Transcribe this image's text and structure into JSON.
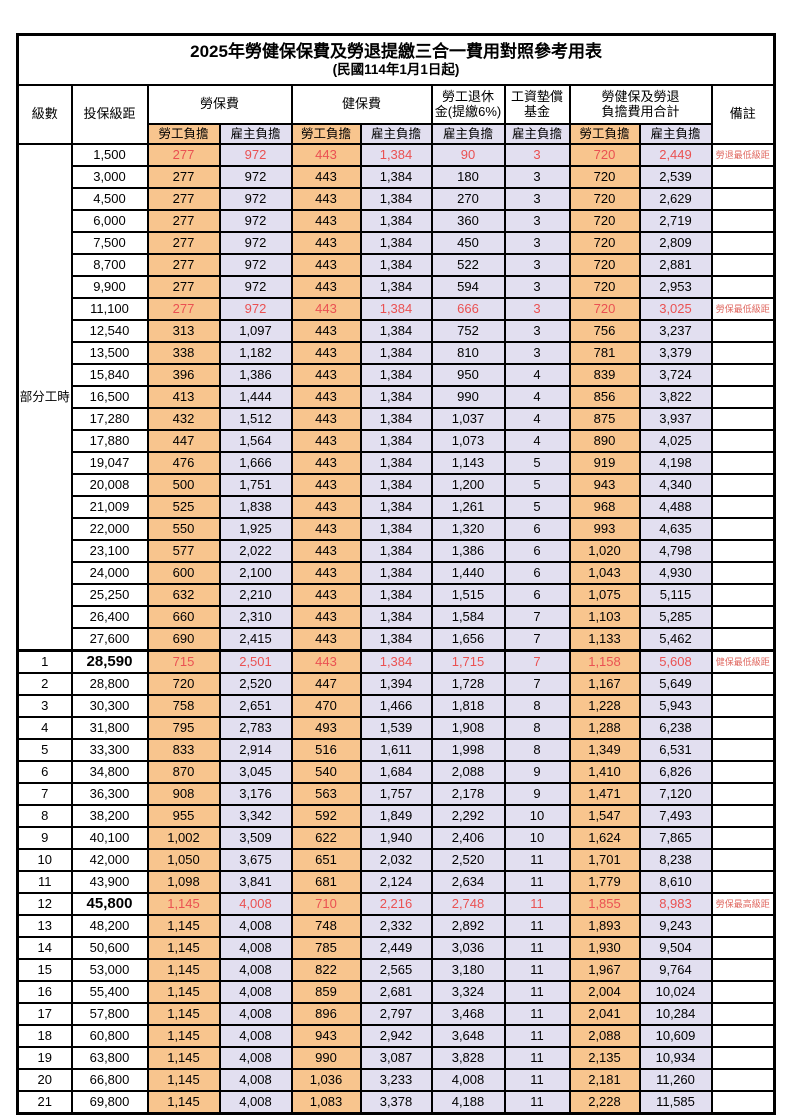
{
  "title": "2025年勞健保保費及勞退提繳三合一費用對照參考用表",
  "subtitle": "(民國114年1月1日起)",
  "header": {
    "level": "級數",
    "salary": "投保級距",
    "labor_group": "勞保費",
    "health_group": "健保費",
    "pension_line1": "勞工退休",
    "pension_line2": "金(提繳6%)",
    "wage_fund_line1": "工資墊償",
    "wage_fund_line2": "基金",
    "total_line1": "勞健保及勞退",
    "total_line2": "負擔費用合計",
    "remark": "備註",
    "employee": "勞工負擔",
    "employer": "雇主負擔"
  },
  "part_time_label": "部分工時",
  "part_time_rowspan": 23,
  "colors": {
    "employee_bg": "#f8c58e",
    "employer_bg": "#e2dff0",
    "highlight_text": "#ea5152",
    "remark_text": "#e06a62",
    "border": "#000000"
  },
  "rows": [
    {
      "level": "",
      "salary": "1,500",
      "cells": [
        "277",
        "972",
        "443",
        "1,384",
        "90",
        "3",
        "720",
        "2,449"
      ],
      "remark": "勞退最低級距",
      "highlight": true
    },
    {
      "level": "",
      "salary": "3,000",
      "cells": [
        "277",
        "972",
        "443",
        "1,384",
        "180",
        "3",
        "720",
        "2,539"
      ],
      "remark": ""
    },
    {
      "level": "",
      "salary": "4,500",
      "cells": [
        "277",
        "972",
        "443",
        "1,384",
        "270",
        "3",
        "720",
        "2,629"
      ],
      "remark": ""
    },
    {
      "level": "",
      "salary": "6,000",
      "cells": [
        "277",
        "972",
        "443",
        "1,384",
        "360",
        "3",
        "720",
        "2,719"
      ],
      "remark": ""
    },
    {
      "level": "",
      "salary": "7,500",
      "cells": [
        "277",
        "972",
        "443",
        "1,384",
        "450",
        "3",
        "720",
        "2,809"
      ],
      "remark": ""
    },
    {
      "level": "",
      "salary": "8,700",
      "cells": [
        "277",
        "972",
        "443",
        "1,384",
        "522",
        "3",
        "720",
        "2,881"
      ],
      "remark": ""
    },
    {
      "level": "",
      "salary": "9,900",
      "cells": [
        "277",
        "972",
        "443",
        "1,384",
        "594",
        "3",
        "720",
        "2,953"
      ],
      "remark": ""
    },
    {
      "level": "",
      "salary": "11,100",
      "cells": [
        "277",
        "972",
        "443",
        "1,384",
        "666",
        "3",
        "720",
        "3,025"
      ],
      "remark": "勞保最低級距",
      "highlight": true
    },
    {
      "level": "",
      "salary": "12,540",
      "cells": [
        "313",
        "1,097",
        "443",
        "1,384",
        "752",
        "3",
        "756",
        "3,237"
      ],
      "remark": ""
    },
    {
      "level": "",
      "salary": "13,500",
      "cells": [
        "338",
        "1,182",
        "443",
        "1,384",
        "810",
        "3",
        "781",
        "3,379"
      ],
      "remark": ""
    },
    {
      "level": "",
      "salary": "15,840",
      "cells": [
        "396",
        "1,386",
        "443",
        "1,384",
        "950",
        "4",
        "839",
        "3,724"
      ],
      "remark": ""
    },
    {
      "level": "",
      "salary": "16,500",
      "cells": [
        "413",
        "1,444",
        "443",
        "1,384",
        "990",
        "4",
        "856",
        "3,822"
      ],
      "remark": ""
    },
    {
      "level": "",
      "salary": "17,280",
      "cells": [
        "432",
        "1,512",
        "443",
        "1,384",
        "1,037",
        "4",
        "875",
        "3,937"
      ],
      "remark": ""
    },
    {
      "level": "",
      "salary": "17,880",
      "cells": [
        "447",
        "1,564",
        "443",
        "1,384",
        "1,073",
        "4",
        "890",
        "4,025"
      ],
      "remark": ""
    },
    {
      "level": "",
      "salary": "19,047",
      "cells": [
        "476",
        "1,666",
        "443",
        "1,384",
        "1,143",
        "5",
        "919",
        "4,198"
      ],
      "remark": ""
    },
    {
      "level": "",
      "salary": "20,008",
      "cells": [
        "500",
        "1,751",
        "443",
        "1,384",
        "1,200",
        "5",
        "943",
        "4,340"
      ],
      "remark": ""
    },
    {
      "level": "",
      "salary": "21,009",
      "cells": [
        "525",
        "1,838",
        "443",
        "1,384",
        "1,261",
        "5",
        "968",
        "4,488"
      ],
      "remark": ""
    },
    {
      "level": "",
      "salary": "22,000",
      "cells": [
        "550",
        "1,925",
        "443",
        "1,384",
        "1,320",
        "6",
        "993",
        "4,635"
      ],
      "remark": ""
    },
    {
      "level": "",
      "salary": "23,100",
      "cells": [
        "577",
        "2,022",
        "443",
        "1,384",
        "1,386",
        "6",
        "1,020",
        "4,798"
      ],
      "remark": ""
    },
    {
      "level": "",
      "salary": "24,000",
      "cells": [
        "600",
        "2,100",
        "443",
        "1,384",
        "1,440",
        "6",
        "1,043",
        "4,930"
      ],
      "remark": ""
    },
    {
      "level": "",
      "salary": "25,250",
      "cells": [
        "632",
        "2,210",
        "443",
        "1,384",
        "1,515",
        "6",
        "1,075",
        "5,115"
      ],
      "remark": ""
    },
    {
      "level": "",
      "salary": "26,400",
      "cells": [
        "660",
        "2,310",
        "443",
        "1,384",
        "1,584",
        "7",
        "1,103",
        "5,285"
      ],
      "remark": ""
    },
    {
      "level": "",
      "salary": "27,600",
      "cells": [
        "690",
        "2,415",
        "443",
        "1,384",
        "1,656",
        "7",
        "1,133",
        "5,462"
      ],
      "remark": ""
    },
    {
      "level": "1",
      "salary": "28,590",
      "cells": [
        "715",
        "2,501",
        "443",
        "1,384",
        "1,715",
        "7",
        "1,158",
        "5,608"
      ],
      "remark": "健保最低級距",
      "highlight": true,
      "bold": true,
      "section": true
    },
    {
      "level": "2",
      "salary": "28,800",
      "cells": [
        "720",
        "2,520",
        "447",
        "1,394",
        "1,728",
        "7",
        "1,167",
        "5,649"
      ],
      "remark": ""
    },
    {
      "level": "3",
      "salary": "30,300",
      "cells": [
        "758",
        "2,651",
        "470",
        "1,466",
        "1,818",
        "8",
        "1,228",
        "5,943"
      ],
      "remark": ""
    },
    {
      "level": "4",
      "salary": "31,800",
      "cells": [
        "795",
        "2,783",
        "493",
        "1,539",
        "1,908",
        "8",
        "1,288",
        "6,238"
      ],
      "remark": ""
    },
    {
      "level": "5",
      "salary": "33,300",
      "cells": [
        "833",
        "2,914",
        "516",
        "1,611",
        "1,998",
        "8",
        "1,349",
        "6,531"
      ],
      "remark": ""
    },
    {
      "level": "6",
      "salary": "34,800",
      "cells": [
        "870",
        "3,045",
        "540",
        "1,684",
        "2,088",
        "9",
        "1,410",
        "6,826"
      ],
      "remark": ""
    },
    {
      "level": "7",
      "salary": "36,300",
      "cells": [
        "908",
        "3,176",
        "563",
        "1,757",
        "2,178",
        "9",
        "1,471",
        "7,120"
      ],
      "remark": ""
    },
    {
      "level": "8",
      "salary": "38,200",
      "cells": [
        "955",
        "3,342",
        "592",
        "1,849",
        "2,292",
        "10",
        "1,547",
        "7,493"
      ],
      "remark": ""
    },
    {
      "level": "9",
      "salary": "40,100",
      "cells": [
        "1,002",
        "3,509",
        "622",
        "1,940",
        "2,406",
        "10",
        "1,624",
        "7,865"
      ],
      "remark": ""
    },
    {
      "level": "10",
      "salary": "42,000",
      "cells": [
        "1,050",
        "3,675",
        "651",
        "2,032",
        "2,520",
        "11",
        "1,701",
        "8,238"
      ],
      "remark": ""
    },
    {
      "level": "11",
      "salary": "43,900",
      "cells": [
        "1,098",
        "3,841",
        "681",
        "2,124",
        "2,634",
        "11",
        "1,779",
        "8,610"
      ],
      "remark": ""
    },
    {
      "level": "12",
      "salary": "45,800",
      "cells": [
        "1,145",
        "4,008",
        "710",
        "2,216",
        "2,748",
        "11",
        "1,855",
        "8,983"
      ],
      "remark": "勞保最高級距",
      "highlight": true,
      "bold": true
    },
    {
      "level": "13",
      "salary": "48,200",
      "cells": [
        "1,145",
        "4,008",
        "748",
        "2,332",
        "2,892",
        "11",
        "1,893",
        "9,243"
      ],
      "remark": ""
    },
    {
      "level": "14",
      "salary": "50,600",
      "cells": [
        "1,145",
        "4,008",
        "785",
        "2,449",
        "3,036",
        "11",
        "1,930",
        "9,504"
      ],
      "remark": ""
    },
    {
      "level": "15",
      "salary": "53,000",
      "cells": [
        "1,145",
        "4,008",
        "822",
        "2,565",
        "3,180",
        "11",
        "1,967",
        "9,764"
      ],
      "remark": ""
    },
    {
      "level": "16",
      "salary": "55,400",
      "cells": [
        "1,145",
        "4,008",
        "859",
        "2,681",
        "3,324",
        "11",
        "2,004",
        "10,024"
      ],
      "remark": ""
    },
    {
      "level": "17",
      "salary": "57,800",
      "cells": [
        "1,145",
        "4,008",
        "896",
        "2,797",
        "3,468",
        "11",
        "2,041",
        "10,284"
      ],
      "remark": ""
    },
    {
      "level": "18",
      "salary": "60,800",
      "cells": [
        "1,145",
        "4,008",
        "943",
        "2,942",
        "3,648",
        "11",
        "2,088",
        "10,609"
      ],
      "remark": ""
    },
    {
      "level": "19",
      "salary": "63,800",
      "cells": [
        "1,145",
        "4,008",
        "990",
        "3,087",
        "3,828",
        "11",
        "2,135",
        "10,934"
      ],
      "remark": ""
    },
    {
      "level": "20",
      "salary": "66,800",
      "cells": [
        "1,145",
        "4,008",
        "1,036",
        "3,233",
        "4,008",
        "11",
        "2,181",
        "11,260"
      ],
      "remark": ""
    },
    {
      "level": "21",
      "salary": "69,800",
      "cells": [
        "1,145",
        "4,008",
        "1,083",
        "3,378",
        "4,188",
        "11",
        "2,228",
        "11,585"
      ],
      "remark": ""
    }
  ]
}
